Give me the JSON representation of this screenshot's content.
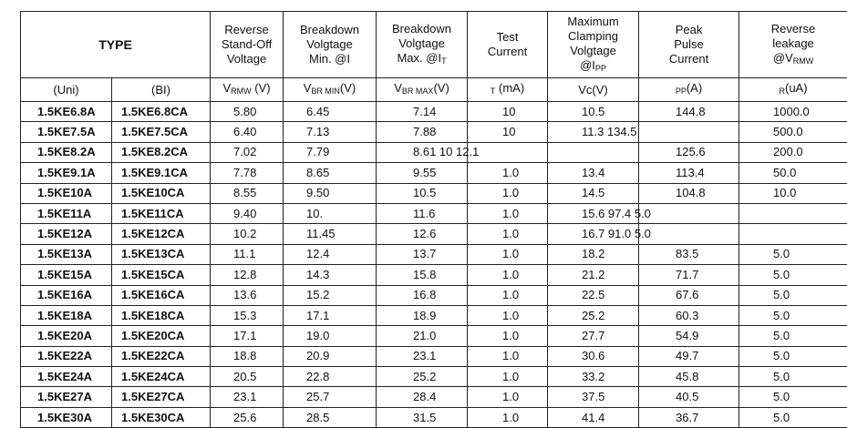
{
  "table": {
    "header": [
      {
        "lines": [
          "TYPE"
        ]
      },
      {
        "lines": [
          "Reverse",
          "Stand-Off",
          "Voltage"
        ]
      },
      {
        "lines": [
          "Breakdown",
          "Volgtage",
          "Min.  @I"
        ]
      },
      {
        "lines": [
          "Breakdown",
          "Volgtage",
          {
            "base": "Max. @I",
            "sub": "T"
          }
        ]
      },
      {
        "lines": [
          "Test",
          "Current"
        ]
      },
      {
        "lines": [
          "Maximum",
          "Clamping",
          "Volgtage",
          {
            "base": "@I",
            "sub": "PP"
          }
        ]
      },
      {
        "lines": [
          "Peak",
          "Pulse",
          "Current"
        ]
      },
      {
        "lines": [
          "Reverse",
          "leakage",
          {
            "base": "@V",
            "sub": "RMW"
          }
        ]
      }
    ],
    "units": [
      {
        "base": "(Uni)"
      },
      {
        "base": "(BI)"
      },
      {
        "base": "V",
        "sub": "RMW",
        "unit": " (V)"
      },
      {
        "base": "V",
        "sub": "BR MIN",
        "unit": "(V)"
      },
      {
        "base": "V",
        "sub": "BR MAX",
        "unit": "(V)"
      },
      {
        "sub": "T",
        "unit": " (mA)"
      },
      {
        "base": "Vc(V)"
      },
      {
        "sub": "PP",
        "unit": "(A)"
      },
      {
        "sub": "R",
        "unit": "(uA)"
      }
    ],
    "rows": [
      [
        "1.5KE6.8A",
        "1.5KE6.8CA",
        "5.80",
        "6.45",
        "7.14",
        "10",
        "10.5",
        "144.8",
        "1000.0"
      ],
      [
        "1.5KE7.5A",
        "1.5KE7.5CA",
        "6.40",
        "7.13",
        "7.88",
        "10",
        "11.3 134.5",
        null,
        "500.0"
      ],
      [
        "1.5KE8.2A",
        "1.5KE8.2CA",
        "7.02",
        "7.79",
        "8.61 10 12.1",
        null,
        null,
        "125.6",
        "200.0"
      ],
      [
        "1.5KE9.1A",
        "1.5KE9.1CA",
        "7.78",
        "8.65",
        "9.55",
        "1.0",
        "13.4",
        "113.4",
        "50.0"
      ],
      [
        "1.5KE10A",
        "1.5KE10CA",
        "8.55",
        "9.50",
        "10.5",
        "1.0",
        "14.5",
        "104.8",
        "10.0"
      ],
      [
        "1.5KE11A",
        "1.5KE11CA",
        "9.40",
        "10.",
        "11.6",
        "1.0",
        "15.6 97.4 5.0",
        null,
        null
      ],
      [
        "1.5KE12A",
        "1.5KE12CA",
        "10.2",
        "11.45",
        "12.6",
        "1.0",
        "16.7 91.0 5.0",
        null,
        null
      ],
      [
        "1.5KE13A",
        "1.5KE13CA",
        "11.1",
        "12.4",
        "13.7",
        "1.0",
        "18.2",
        "83.5",
        "5.0"
      ],
      [
        "1.5KE15A",
        "1.5KE15CA",
        "12.8",
        "14.3",
        "15.8",
        "1.0",
        "21.2",
        "71.7",
        "5.0"
      ],
      [
        "1.5KE16A",
        "1.5KE16CA",
        "13.6",
        "15.2",
        "16.8",
        "1.0",
        "22.5",
        "67.6",
        "5.0"
      ],
      [
        "1.5KE18A",
        "1.5KE18CA",
        "15.3",
        "17.1",
        "18.9",
        "1.0",
        "25.2",
        "60.3",
        "5.0"
      ],
      [
        "1.5KE20A",
        "1.5KE20CA",
        "17.1",
        "19.0",
        "21.0",
        "1.0",
        "27.7",
        "54.9",
        "5.0"
      ],
      [
        "1.5KE22A",
        "1.5KE22CA",
        "18.8",
        "20.9",
        "23.1",
        "1.0",
        "30.6",
        "49.7",
        "5.0"
      ],
      [
        "1.5KE24A",
        "1.5KE24CA",
        "20.5",
        "22.8",
        "25.2",
        "1.0",
        "33.2",
        "45.8",
        "5.0"
      ],
      [
        "1.5KE27A",
        "1.5KE27CA",
        "23.1",
        "25.7",
        "28.4",
        "1.0",
        "37.5",
        "40.5",
        "5.0"
      ],
      [
        "1.5KE30A",
        "1.5KE30CA",
        "25.6",
        "28.5",
        "31.5",
        "1.0",
        "41.4",
        "36.7",
        "5.0"
      ]
    ]
  }
}
